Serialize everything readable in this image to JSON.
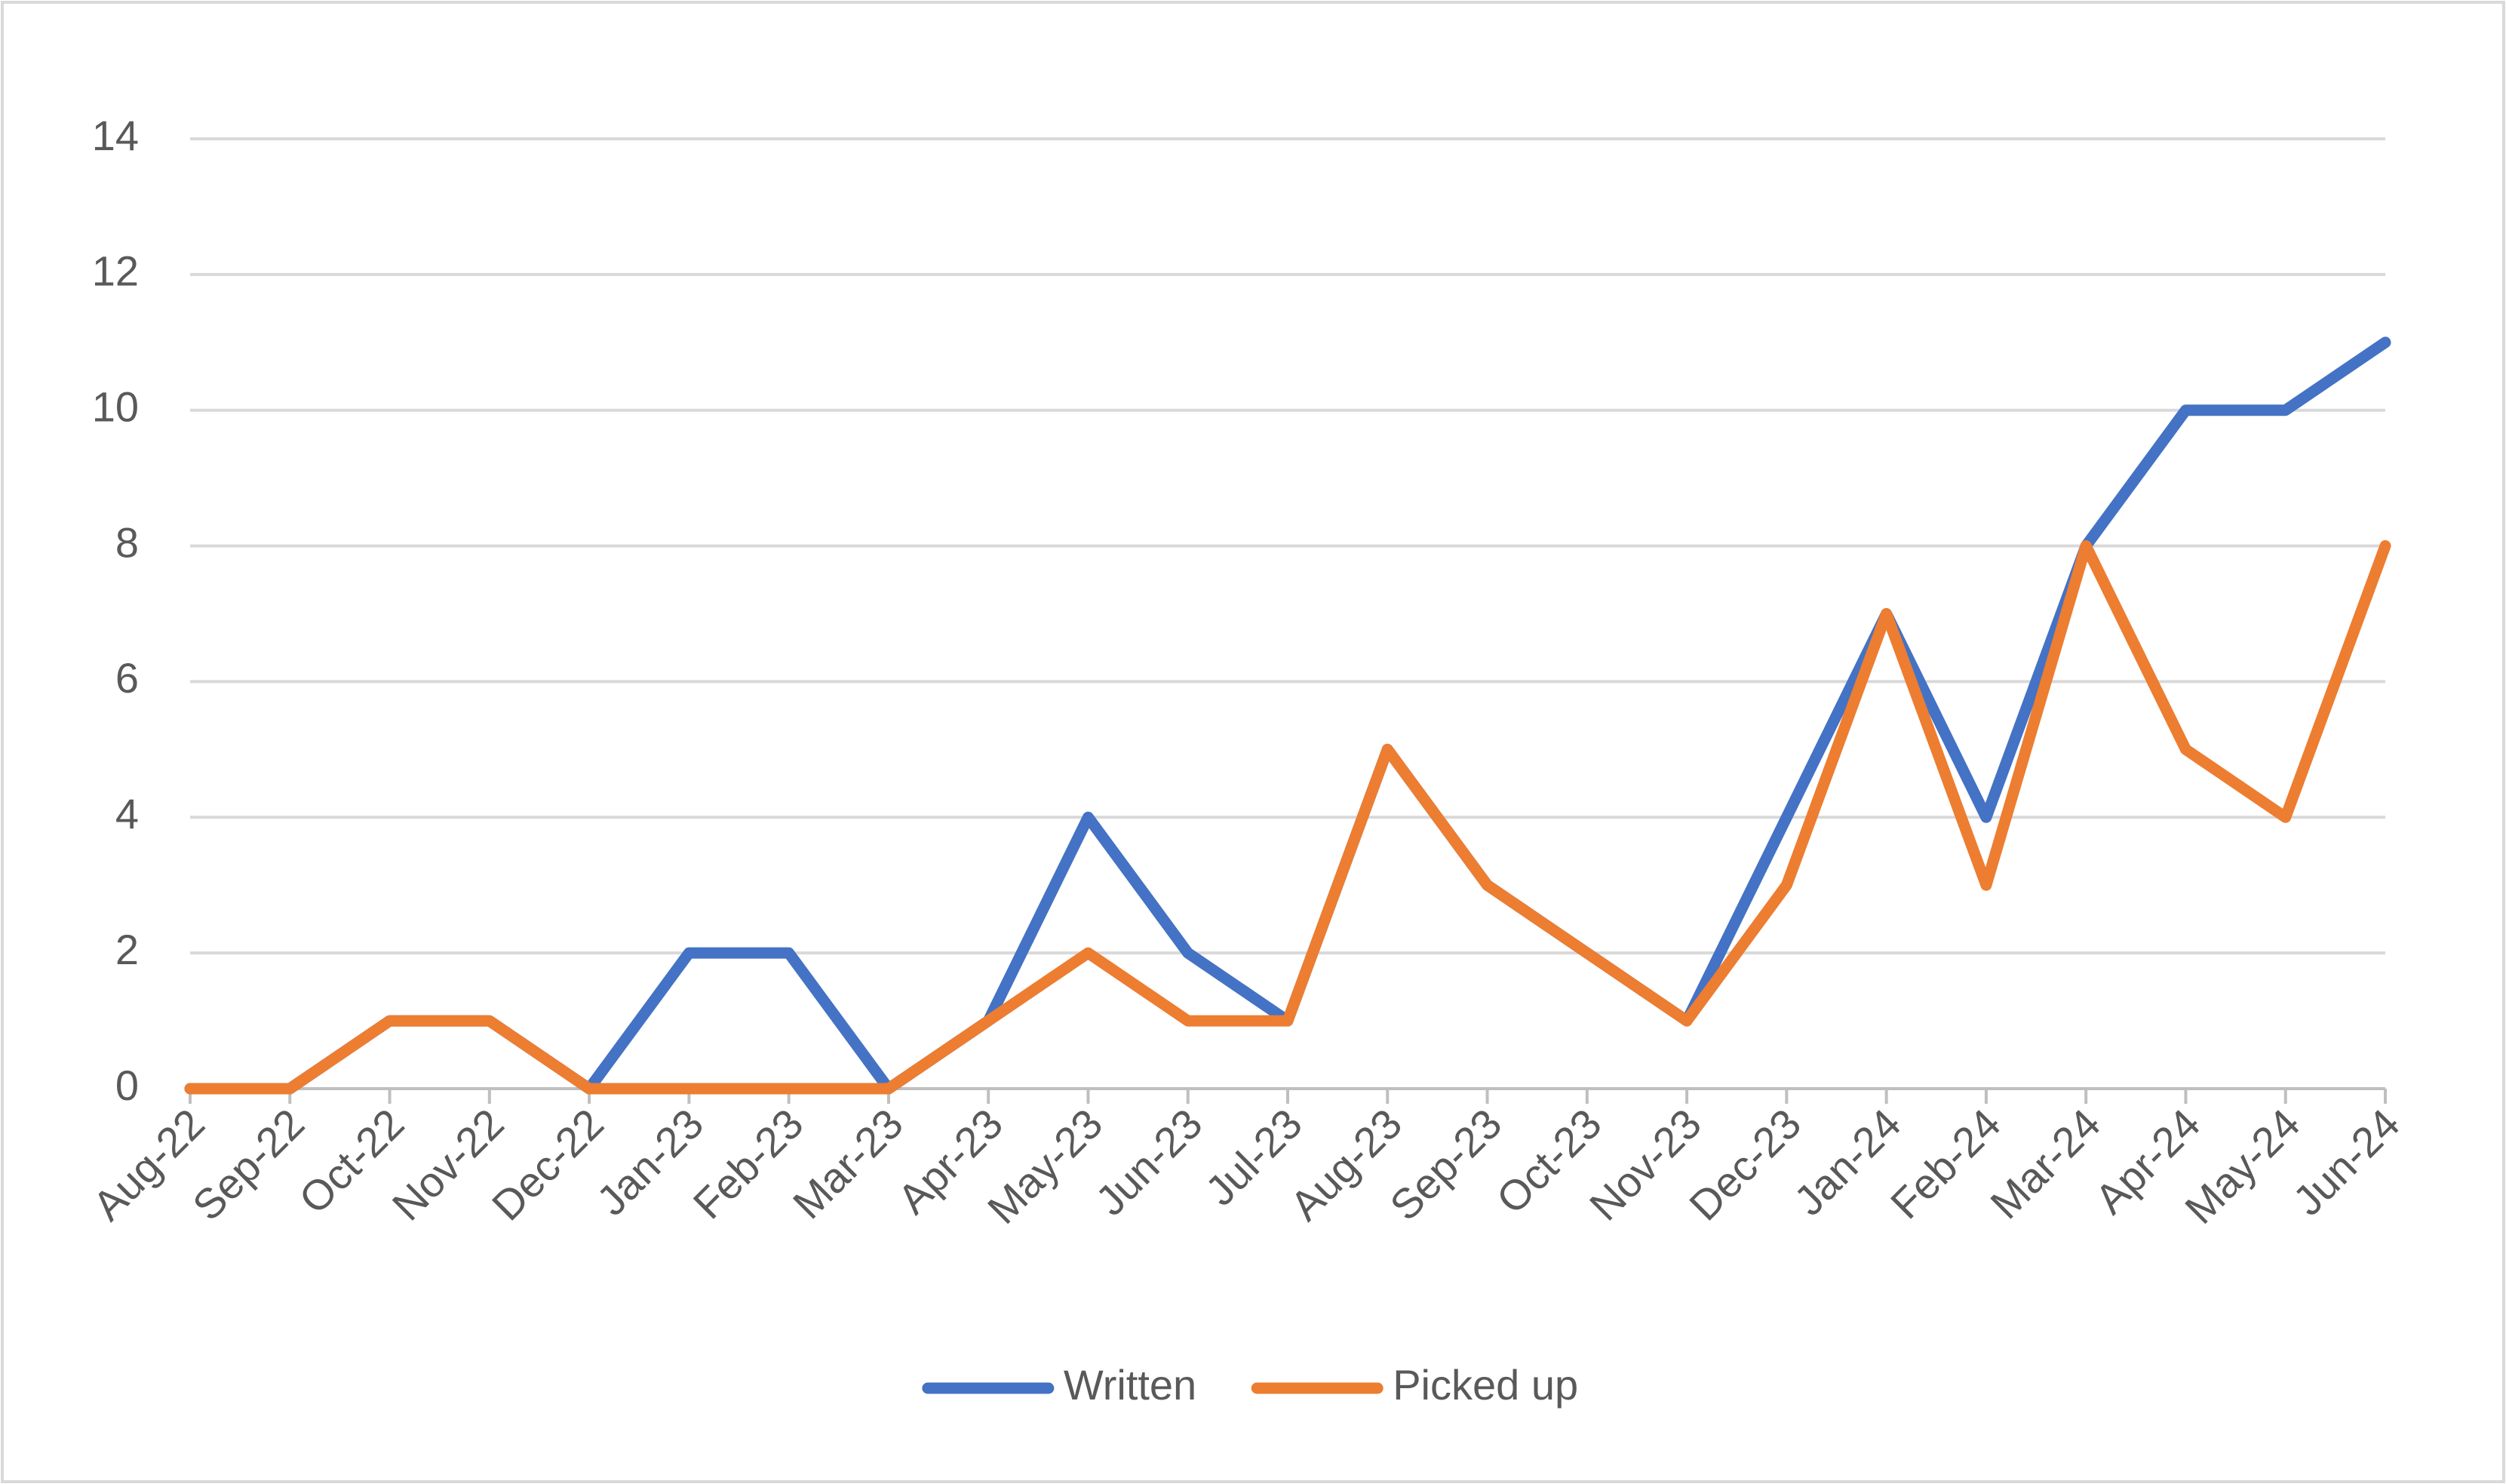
{
  "chart_data": {
    "type": "line",
    "categories": [
      "Aug-22",
      "Sep-22",
      "Oct-22",
      "Nov-22",
      "Dec-22",
      "Jan-23",
      "Feb-23",
      "Mar-23",
      "Apr-23",
      "May-23",
      "Jun-23",
      "Jul-23",
      "Aug-23",
      "Sep-23",
      "Oct-23",
      "Nov-23",
      "Dec-23",
      "Jan-24",
      "Feb-24",
      "Mar-24",
      "Apr-24",
      "May-24",
      "Jun-24"
    ],
    "series": [
      {
        "name": "Written",
        "color": "#4472c4",
        "values": [
          0,
          0,
          1,
          1,
          0,
          2,
          2,
          0,
          1,
          4,
          2,
          1,
          5,
          3,
          2,
          1,
          4,
          7,
          4,
          8,
          10,
          10,
          11
        ]
      },
      {
        "name": "Picked up",
        "color": "#ed7d31",
        "values": [
          0,
          0,
          1,
          1,
          0,
          0,
          0,
          0,
          1,
          2,
          1,
          1,
          5,
          3,
          2,
          1,
          3,
          7,
          3,
          8,
          5,
          4,
          8
        ]
      }
    ],
    "ylim": [
      0,
      14
    ],
    "yticks": [
      0,
      2,
      4,
      6,
      8,
      10,
      12,
      14
    ],
    "grid": true,
    "legend": "bottom"
  }
}
